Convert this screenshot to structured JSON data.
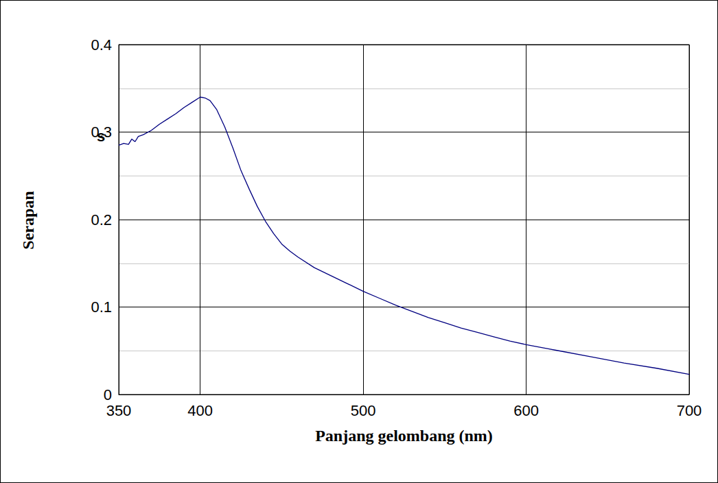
{
  "chart_data": {
    "type": "line",
    "x_label": "Panjang gelombang (nm)",
    "y_label": "Serapan",
    "annotations": [
      "s"
    ],
    "color": "#000080",
    "grid": true,
    "xlim": [
      350,
      700
    ],
    "xticks": [
      350,
      400,
      500,
      600,
      700
    ],
    "ylim": [
      0,
      0.4
    ],
    "yticks": [
      0,
      0.1,
      0.2,
      0.3,
      0.4
    ],
    "x": [
      350,
      353,
      356,
      358,
      360,
      362,
      365,
      370,
      375,
      380,
      385,
      390,
      395,
      400,
      403,
      406,
      410,
      415,
      420,
      425,
      430,
      435,
      440,
      445,
      450,
      455,
      460,
      470,
      480,
      490,
      500,
      510,
      520,
      530,
      540,
      550,
      560,
      570,
      580,
      590,
      600,
      620,
      640,
      660,
      680,
      700
    ],
    "values": [
      0.285,
      0.287,
      0.286,
      0.292,
      0.289,
      0.295,
      0.297,
      0.302,
      0.309,
      0.315,
      0.321,
      0.328,
      0.334,
      0.34,
      0.339,
      0.336,
      0.326,
      0.306,
      0.282,
      0.256,
      0.235,
      0.215,
      0.198,
      0.184,
      0.172,
      0.164,
      0.157,
      0.145,
      0.136,
      0.127,
      0.118,
      0.11,
      0.102,
      0.095,
      0.088,
      0.082,
      0.076,
      0.071,
      0.066,
      0.061,
      0.057,
      0.05,
      0.043,
      0.036,
      0.03,
      0.023
    ]
  }
}
